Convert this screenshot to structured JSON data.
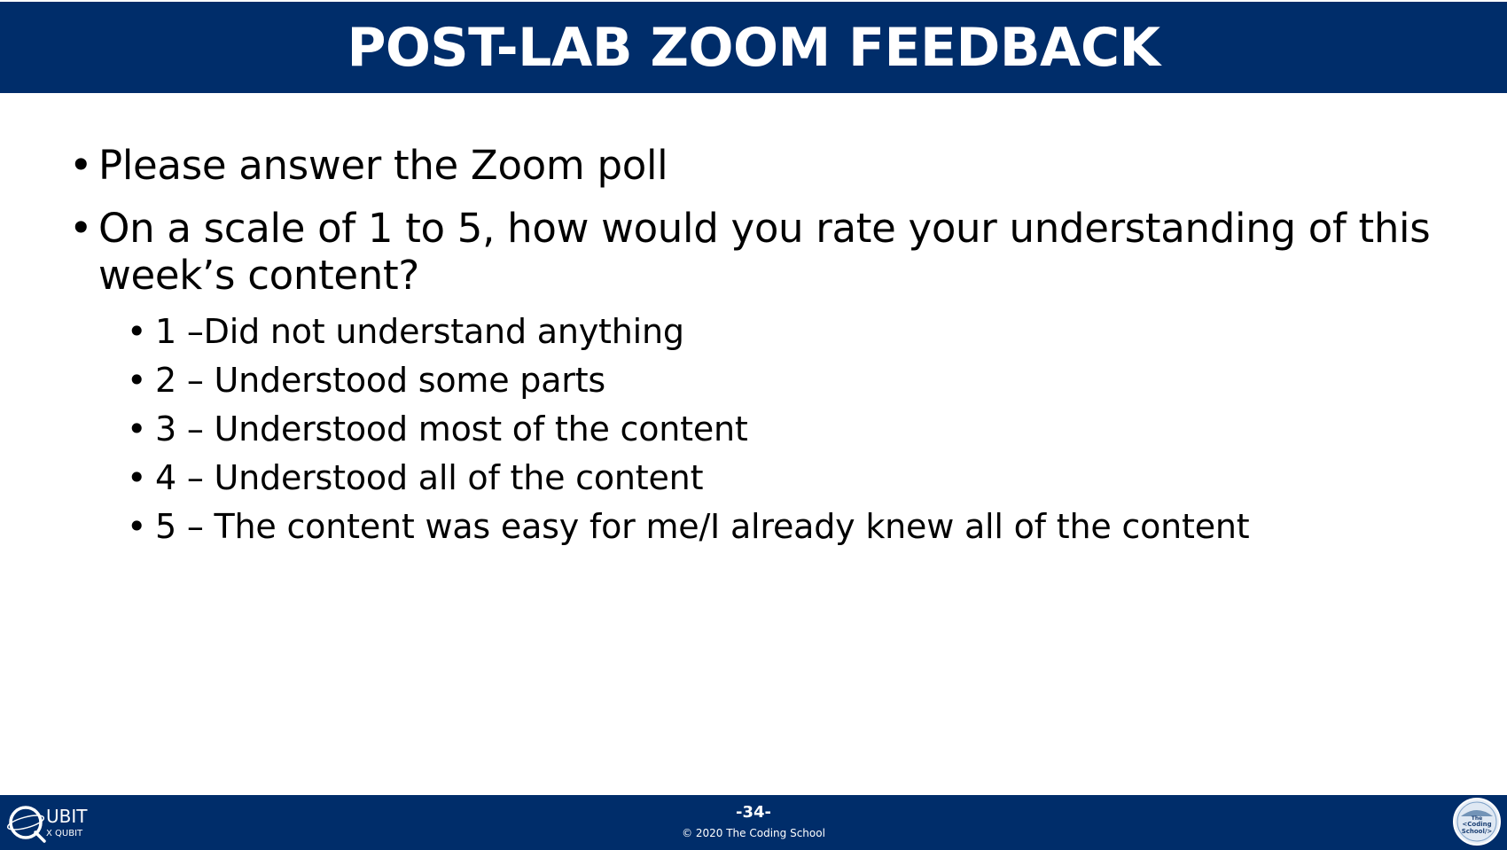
{
  "slide": {
    "title": "POST-LAB ZOOM FEEDBACK",
    "bullets": [
      "Please answer the Zoom poll",
      "On a scale of 1 to 5, how would you rate your understanding of this week’s content?"
    ],
    "scale_items": [
      "1 –Did not understand anything",
      "2 – Understood some parts",
      "3 – Understood most of the content",
      "4 – Understood all of the content",
      "5 – The content was easy for me/I already knew all of the content"
    ]
  },
  "footer": {
    "page_number": "-34-",
    "copyright": "© 2020 The Coding School",
    "left_logo_text": [
      "UBIT",
      "X QUBIT"
    ],
    "right_logo_text": [
      "The",
      "<Coding",
      "School/>"
    ]
  },
  "colors": {
    "header_bg": "#002d6a",
    "footer_bg": "#002d6a",
    "text": "#000000",
    "header_text": "#ffffff"
  }
}
